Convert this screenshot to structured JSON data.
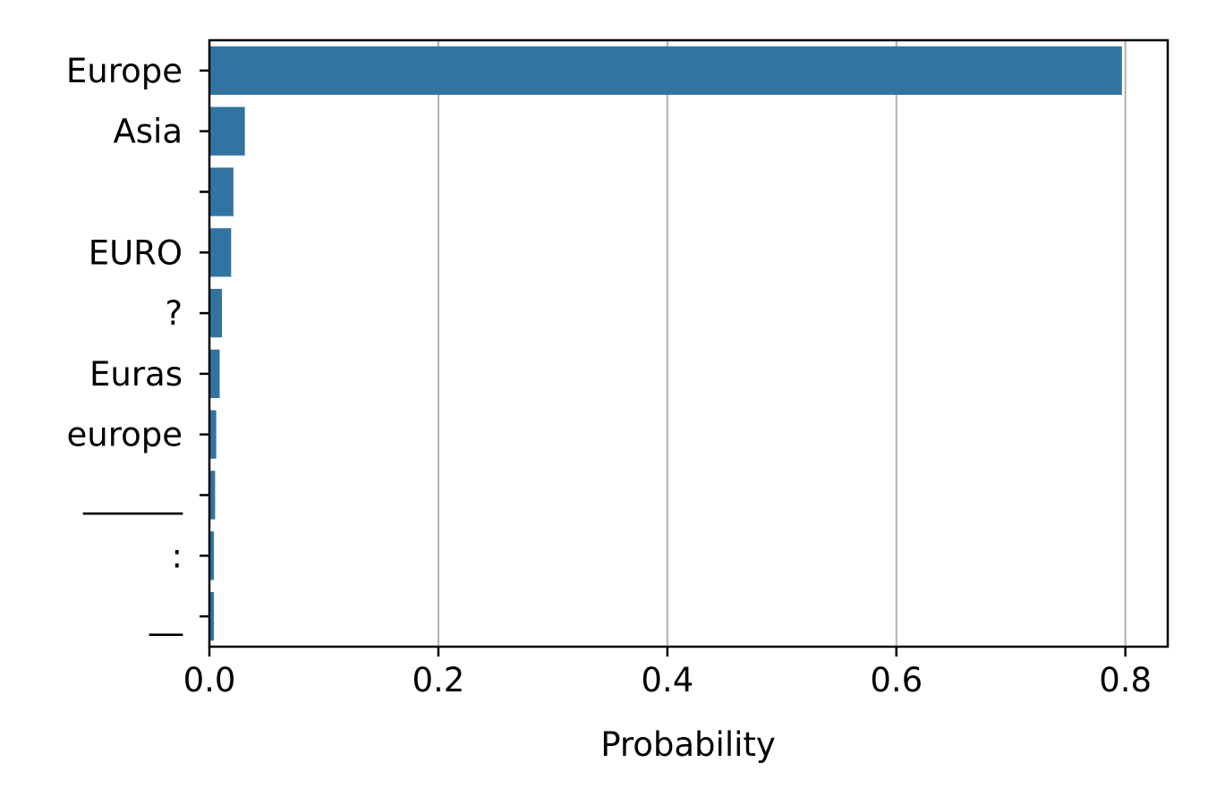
{
  "chart_data": {
    "type": "bar",
    "orientation": "horizontal",
    "categories": [
      "Europe",
      "Asia",
      "",
      "EURO",
      "?",
      "Euras",
      "europe",
      "______",
      ":",
      "__"
    ],
    "values": [
      0.797,
      0.031,
      0.021,
      0.019,
      0.011,
      0.009,
      0.006,
      0.005,
      0.004,
      0.004
    ],
    "xlabel": "Probability",
    "ylabel": "",
    "xlim": [
      0,
      0.837
    ],
    "xticks": [
      0.0,
      0.2,
      0.4,
      0.6,
      0.8
    ],
    "xtick_labels": [
      "0.0",
      "0.2",
      "0.4",
      "0.6",
      "0.8"
    ],
    "grid": "x",
    "colors": {
      "bar": "#3274a1",
      "grid": "#b0b0b0",
      "axis": "#000000"
    }
  }
}
